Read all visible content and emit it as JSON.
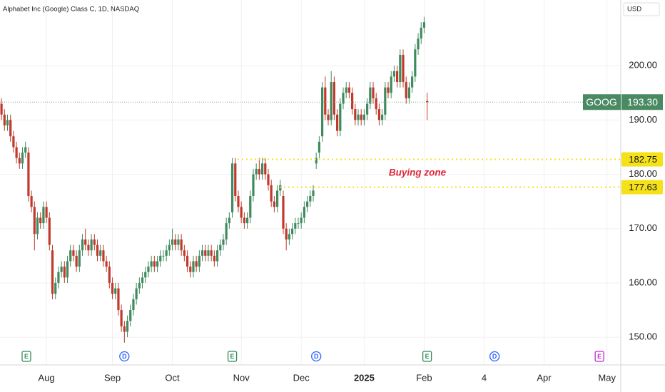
{
  "chart_data": {
    "type": "candlestick",
    "title": "Alphabet Inc (Google) Class C, 1D, NASDAQ",
    "currency": "USD",
    "up_color": "#3f8a5e",
    "down_color": "#c0392b",
    "grid": true,
    "xlim": [
      -0.5,
      206.6
    ],
    "ylim": [
      144.9,
      212.1
    ],
    "xticks": [
      {
        "value": 15,
        "label": "Aug"
      },
      {
        "value": 37,
        "label": "Sep"
      },
      {
        "value": 57,
        "label": "Oct"
      },
      {
        "value": 80,
        "label": "Nov"
      },
      {
        "value": 100,
        "label": "Dec"
      },
      {
        "value": 121,
        "label": "2025"
      },
      {
        "value": 141,
        "label": "Feb"
      },
      {
        "value": 161,
        "label": "4"
      },
      {
        "value": 181,
        "label": "Apr"
      },
      {
        "value": 202,
        "label": "May"
      }
    ],
    "yticks": [
      {
        "value": 150,
        "label": "150.00"
      },
      {
        "value": 160,
        "label": "160.00"
      },
      {
        "value": 170,
        "label": "170.00"
      },
      {
        "value": 180,
        "label": "180.00"
      },
      {
        "value": 190,
        "label": "190.00"
      },
      {
        "value": 200,
        "label": "200.00"
      }
    ],
    "open": [
      193,
      191,
      189,
      190,
      187,
      185,
      183,
      182,
      184,
      184,
      176,
      174,
      169,
      172,
      171,
      174,
      172,
      166,
      158,
      160,
      162,
      163,
      161,
      164,
      166,
      165,
      163,
      166,
      168,
      167,
      166,
      168,
      167,
      165,
      166,
      164,
      163,
      160,
      158,
      159,
      155,
      152,
      151,
      153,
      155,
      157,
      159,
      160,
      161,
      162,
      163,
      164,
      163,
      164,
      165,
      165,
      166,
      167,
      168,
      167,
      168,
      166,
      165,
      163,
      162,
      164,
      163,
      165,
      166,
      165,
      166,
      165,
      164,
      166,
      167,
      168,
      171,
      173,
      182,
      176,
      174,
      172,
      171,
      172,
      176,
      180,
      181,
      180,
      182,
      180,
      178,
      175,
      174,
      177,
      176,
      170,
      168,
      169,
      170,
      171,
      171,
      172,
      174,
      175,
      176,
      182,
      184,
      187,
      196,
      191,
      190,
      197,
      191,
      188,
      193,
      195,
      196,
      195,
      192,
      190,
      191,
      190,
      191,
      193,
      196,
      194,
      192,
      190,
      191,
      196,
      195,
      198,
      199,
      197,
      202,
      197,
      194,
      196,
      198,
      203,
      205,
      207,
      193.5
    ],
    "high": [
      194,
      192,
      191,
      191,
      188,
      186,
      184,
      185,
      186,
      185,
      177,
      175,
      173,
      173,
      175,
      175,
      173,
      167,
      161,
      163,
      164,
      164,
      165,
      167,
      167,
      166,
      167,
      169,
      170,
      168,
      169,
      169,
      168,
      167,
      167,
      165,
      164,
      161,
      160,
      160,
      156,
      153,
      154,
      156,
      158,
      160,
      161,
      162,
      163,
      164,
      165,
      165,
      165,
      166,
      166,
      167,
      168,
      170,
      169,
      169,
      169,
      167,
      166,
      164,
      165,
      165,
      166,
      167,
      167,
      167,
      167,
      166,
      167,
      168,
      169,
      172,
      173,
      183,
      183,
      177,
      175,
      173,
      173,
      177,
      181,
      182,
      183,
      183,
      183,
      181,
      179,
      176,
      178,
      179,
      177,
      171,
      170,
      171,
      172,
      172,
      173,
      175,
      176,
      177,
      178,
      184,
      187,
      197,
      198,
      192,
      199,
      198,
      192,
      194,
      196,
      197,
      197,
      196,
      193,
      192,
      192,
      192,
      194,
      197,
      197,
      195,
      193,
      192,
      197,
      197,
      199,
      200,
      200,
      203,
      203,
      198,
      197,
      199,
      204,
      206,
      208,
      209,
      195
    ],
    "low": [
      190,
      188,
      188,
      186,
      184,
      182,
      181,
      181,
      183,
      175,
      173,
      166,
      168,
      170,
      170,
      171,
      166,
      157,
      157,
      159,
      161,
      160,
      160,
      163,
      164,
      162,
      162,
      165,
      166,
      165,
      165,
      166,
      164,
      164,
      163,
      162,
      159,
      157,
      157,
      154,
      151,
      149,
      150,
      152,
      154,
      156,
      158,
      159,
      160,
      161,
      162,
      162,
      162,
      163,
      164,
      164,
      165,
      166,
      166,
      166,
      165,
      164,
      162,
      161,
      161,
      162,
      162,
      164,
      164,
      164,
      164,
      163,
      163,
      165,
      166,
      167,
      170,
      172,
      175,
      173,
      171,
      170,
      170,
      171,
      175,
      179,
      179,
      179,
      179,
      177,
      174,
      173,
      173,
      176,
      169,
      166,
      167,
      168,
      169,
      170,
      170,
      171,
      173,
      174,
      175,
      181,
      183,
      186,
      190,
      189,
      189,
      190,
      187,
      187,
      192,
      194,
      194,
      191,
      189,
      189,
      189,
      189,
      190,
      192,
      193,
      191,
      189,
      189,
      190,
      194,
      194,
      197,
      196,
      196,
      196,
      193,
      193,
      195,
      197,
      202,
      204,
      206,
      190
    ],
    "close": [
      191,
      189,
      190,
      187,
      185,
      183,
      182,
      184,
      185,
      176,
      174,
      169,
      172,
      171,
      174,
      172,
      167,
      158,
      160,
      162,
      163,
      161,
      164,
      166,
      165,
      163,
      166,
      168,
      167,
      166,
      168,
      167,
      165,
      166,
      164,
      163,
      160,
      158,
      159,
      155,
      152,
      151,
      153,
      155,
      157,
      159,
      160,
      161,
      162,
      163,
      164,
      163,
      164,
      165,
      165,
      166,
      167,
      168,
      167,
      168,
      166,
      165,
      163,
      162,
      164,
      163,
      165,
      166,
      165,
      166,
      165,
      164,
      166,
      167,
      168,
      171,
      172,
      182,
      176,
      174,
      172,
      171,
      172,
      176,
      180,
      181,
      180,
      182,
      180,
      178,
      175,
      174,
      177,
      178,
      170,
      168,
      169,
      170,
      171,
      171,
      172,
      174,
      175,
      176,
      177,
      183,
      186,
      196,
      191,
      190,
      197,
      191,
      188,
      193,
      195,
      196,
      195,
      192,
      190,
      191,
      190,
      191,
      193,
      196,
      194,
      192,
      190,
      191,
      196,
      195,
      198,
      199,
      197,
      202,
      197,
      194,
      196,
      198,
      203,
      205,
      207,
      208,
      193.3
    ],
    "last_price": {
      "name": "GOOG",
      "value": 193.3,
      "label": "193.30",
      "color": "#4a8a63"
    },
    "levels": [
      {
        "value": 182.75,
        "label": "182.75"
      },
      {
        "value": 177.63,
        "label": "177.63"
      }
    ],
    "level_color": "#f5e11a",
    "annotation": "Buying zone",
    "events": [
      {
        "label": "E",
        "x": 8.3,
        "color": "#2e8b57"
      },
      {
        "label": "D",
        "x": 41,
        "color": "#2962ff"
      },
      {
        "label": "E",
        "x": 77,
        "color": "#2e8b57"
      },
      {
        "label": "D",
        "x": 105,
        "color": "#2962ff"
      },
      {
        "label": "E",
        "x": 142,
        "color": "#2e8b57"
      },
      {
        "label": "D",
        "x": 164.5,
        "color": "#2962ff"
      },
      {
        "label": "E",
        "x": 199.5,
        "color": "#c02bd1"
      }
    ]
  }
}
